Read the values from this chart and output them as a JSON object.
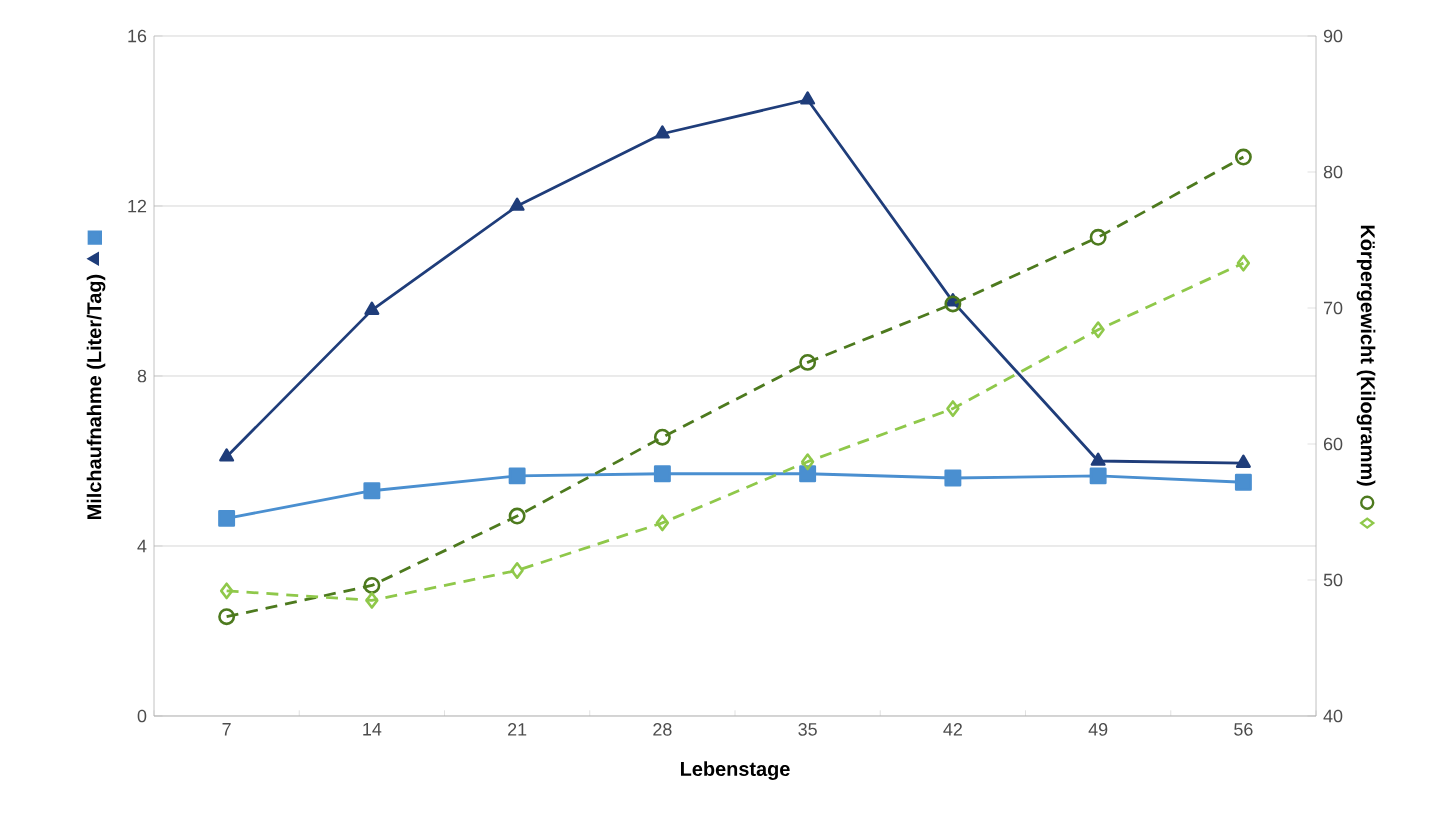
{
  "chart_data": {
    "type": "line",
    "xlabel": "Lebenstage",
    "ylabel": "Milchaufnahme (Liter/Tag)",
    "y2label": "Körpergewicht (Kilogramm)",
    "categories": [
      "7",
      "14",
      "21",
      "28",
      "35",
      "42",
      "49",
      "56"
    ],
    "ylim": [
      0,
      16
    ],
    "yticks": [
      0,
      4,
      8,
      12,
      16
    ],
    "y2lim": [
      40,
      90
    ],
    "y2ticks": [
      40,
      50,
      60,
      70,
      80,
      90
    ],
    "grid": "y",
    "series": [
      {
        "color": "#1f3d7a",
        "marker": "triangle",
        "line_style": "solid",
        "values": [
          6.1,
          9.55,
          12.0,
          13.7,
          14.5,
          9.75,
          6.0,
          5.95
        ]
      },
      {
        "color": "#4a8fd0",
        "marker": "square",
        "line_style": "solid",
        "values": [
          4.65,
          5.3,
          5.65,
          5.7,
          5.7,
          5.6,
          5.65,
          5.5
        ]
      },
      {
        "color": "#4d7a1e",
        "marker": "circle",
        "line_style": "dashed",
        "axis": "y2",
        "values": [
          47.3,
          49.6,
          54.7,
          60.5,
          66.0,
          70.3,
          75.2,
          81.1
        ]
      },
      {
        "color": "#8fc84a",
        "marker": "diamond",
        "line_style": "dashed",
        "axis": "y2",
        "values": [
          49.2,
          48.5,
          50.7,
          54.2,
          58.7,
          62.6,
          68.4,
          73.3
        ]
      }
    ]
  }
}
